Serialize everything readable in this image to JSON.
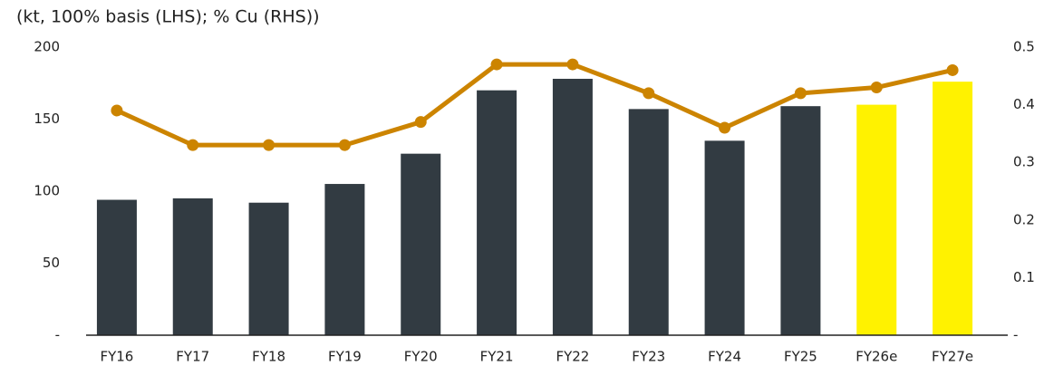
{
  "chart_data": {
    "type": "bar",
    "title": "(kt, 100% basis (LHS); % Cu (RHS))",
    "categories": [
      "FY16",
      "FY17",
      "FY18",
      "FY19",
      "FY20",
      "FY21",
      "FY22",
      "FY23",
      "FY24",
      "FY25",
      "FY26e",
      "FY27e"
    ],
    "series": [
      {
        "type": "bar",
        "colors": [
          "#323b42",
          "#323b42",
          "#323b42",
          "#323b42",
          "#323b42",
          "#323b42",
          "#323b42",
          "#323b42",
          "#323b42",
          "#323b42",
          "#fff200",
          "#fff200"
        ],
        "values": [
          94,
          95,
          92,
          105,
          126,
          170,
          178,
          157,
          135,
          159,
          160,
          176
        ]
      },
      {
        "type": "line",
        "axis": "y2",
        "color": "#cc8400",
        "values": [
          0.39,
          0.33,
          0.33,
          0.33,
          0.37,
          0.47,
          0.47,
          0.42,
          0.36,
          0.42,
          0.43,
          0.46
        ]
      }
    ],
    "ylim": [
      0,
      200
    ],
    "yticks": [
      {
        "value": 0,
        "label": "-"
      },
      50,
      100,
      150,
      200
    ],
    "y2lim": [
      0,
      0.5
    ],
    "y2ticks": [
      {
        "value": 0,
        "label": "-"
      },
      0.1,
      0.2,
      0.3,
      0.4,
      0.5
    ],
    "grid": false
  }
}
